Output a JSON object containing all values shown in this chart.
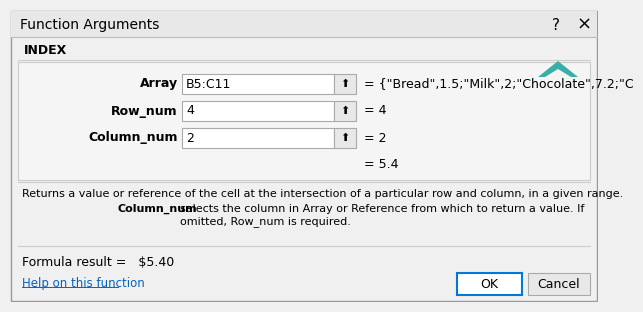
{
  "title": "Function Arguments",
  "bg_color": "#F0F0F0",
  "white": "#FFFFFF",
  "blue_border": "#0078D7",
  "function_name": "INDEX",
  "fields": [
    {
      "label": "Array",
      "value": "B5:C11",
      "result": "= {\"Bread\",1.5;\"Milk\",2;\"Chocolate\",7.2;\"C"
    },
    {
      "label": "Row_num",
      "value": "4",
      "result": "= 4"
    },
    {
      "label": "Column_num",
      "value": "2",
      "result": "= 2"
    }
  ],
  "formula_result_label": "= 5.4",
  "desc_line1": "Returns a value or reference of the cell at the intersection of a particular row and column, in a given range.",
  "desc_bold": "Column_num",
  "desc_line2": "selects the column in Array or Reference from which to return a value. If",
  "desc_line3": "omitted, Row_num is required.",
  "formula_result": "Formula result =   $5.40",
  "help_text": "Help on this function",
  "ok_text": "OK",
  "cancel_text": "Cancel",
  "question_mark": "?",
  "close_x": "×",
  "teal_color": "#3AAFA9",
  "link_color": "#0563C1",
  "text_color": "#000000",
  "title_bar_color": "#E8E8E8",
  "fields_bg": "#F5F5F5",
  "border_color": "#AAAAAA",
  "sep_color": "#CCCCCC",
  "btn_bg": "#E8E8E8"
}
